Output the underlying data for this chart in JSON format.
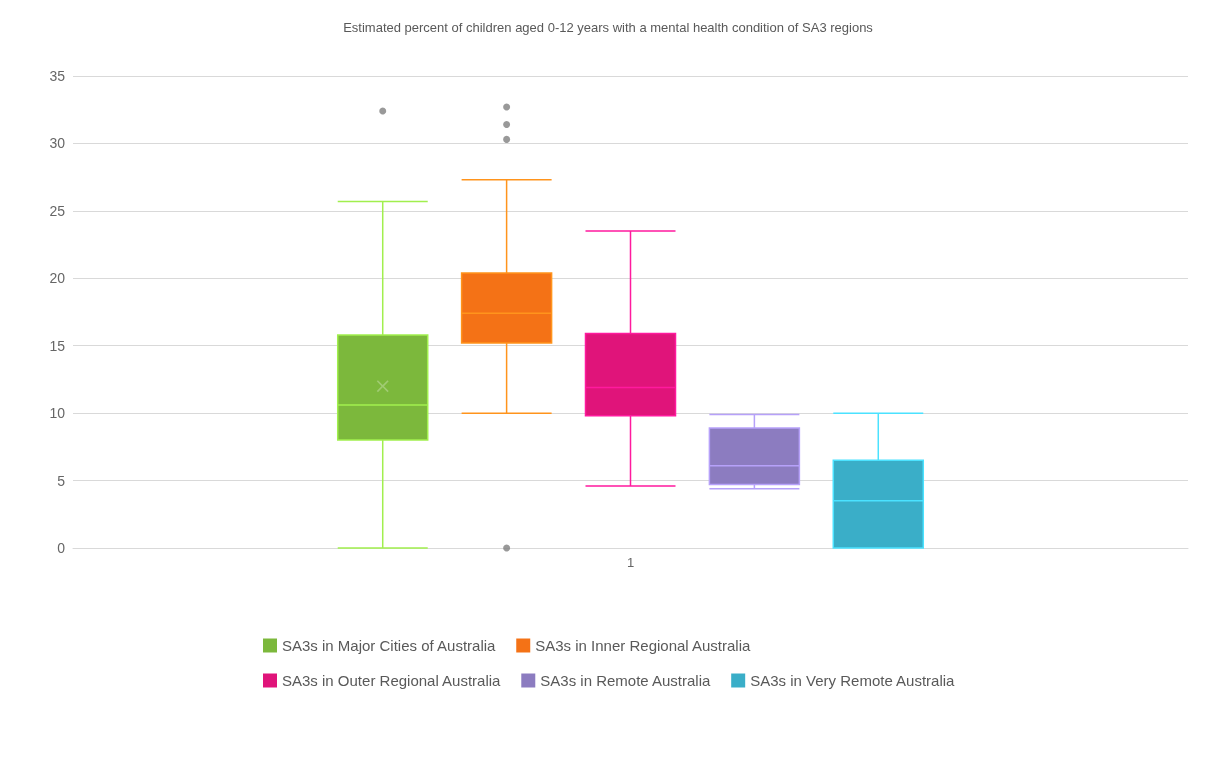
{
  "chart_data": {
    "type": "box",
    "title": "Estimated percent of children aged 0-12 years with a mental health condition of SA3 regions",
    "categories": [
      "1"
    ],
    "series": [
      {
        "name": "SA3s in Major Cities of Australia",
        "color": "#7cb83c",
        "boxes": [
          {
            "low": 0,
            "q1": 8.0,
            "median": 10.6,
            "q3": 15.8,
            "high": 25.7,
            "mean": 12.0,
            "outliers": [
              32.4
            ]
          }
        ]
      },
      {
        "name": "SA3s in Inner Regional Australia",
        "color": "#f47216",
        "boxes": [
          {
            "low": 10.0,
            "q1": 15.2,
            "median": 17.4,
            "q3": 20.4,
            "high": 27.3,
            "outliers": [
              32.7,
              31.4,
              30.3,
              0
            ]
          }
        ]
      },
      {
        "name": "SA3s in Outer Regional Australia",
        "color": "#e0147a",
        "boxes": [
          {
            "low": 4.6,
            "q1": 9.8,
            "median": 11.9,
            "q3": 15.9,
            "high": 23.5
          }
        ]
      },
      {
        "name": "SA3s in Remote Australia",
        "color": "#8c7cc0",
        "boxes": [
          {
            "low": 4.4,
            "q1": 4.7,
            "median": 6.1,
            "q3": 8.9,
            "high": 9.9
          }
        ]
      },
      {
        "name": "SA3s in Very Remote Australia",
        "color": "#3aaec8",
        "boxes": [
          {
            "low": 0,
            "q1": 0,
            "median": 3.5,
            "q3": 6.5,
            "high": 10.0
          }
        ]
      }
    ],
    "ylim": [
      0,
      35
    ],
    "yticks": [
      0,
      5,
      10,
      15,
      20,
      25,
      30,
      35
    ],
    "grid": "y",
    "legend": "bottom"
  }
}
